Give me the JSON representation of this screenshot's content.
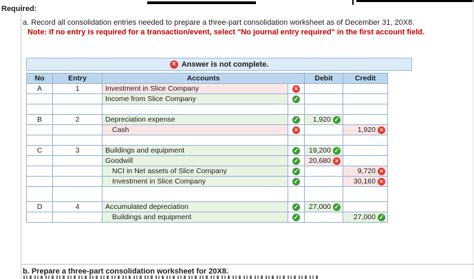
{
  "page": {
    "required_label": "Required:",
    "task_a_prefix": "a.",
    "task_a": "Record all consolidation entries needed to prepare a three-part consolidation worksheet as of December 31, 20X8.",
    "note": "Note: If no entry is required for a transaction/event, select \"No journal entry required\" in the first account field.",
    "task_b_prefix": "b.",
    "task_b": "Prepare a three-part consolidation worksheet for 20X8."
  },
  "banner": {
    "text": "Answer is not complete.",
    "icon": "x-circle-icon"
  },
  "journal_table": {
    "headers": {
      "no": "No",
      "entry": "Entry",
      "accounts": "Accounts",
      "debit": "Debit",
      "credit": "Credit"
    },
    "rows": [
      {
        "type": "entry",
        "no": "A",
        "entry": "1",
        "account": "Investment in Slice Company",
        "indent": false,
        "account_state": "incorrect",
        "debit": "",
        "debit_state": "",
        "credit": "",
        "credit_state": ""
      },
      {
        "type": "entry",
        "no": "",
        "entry": "",
        "account": "Income from Slice Company",
        "indent": false,
        "account_state": "correct",
        "debit": "",
        "debit_state": "",
        "credit": "",
        "credit_state": ""
      },
      {
        "type": "blank"
      },
      {
        "type": "entry",
        "no": "B",
        "entry": "2",
        "account": "Depreciation expense",
        "indent": false,
        "account_state": "correct",
        "debit": "1,920",
        "debit_state": "correct",
        "credit": "",
        "credit_state": ""
      },
      {
        "type": "entry",
        "no": "",
        "entry": "",
        "account": "Cash",
        "indent": true,
        "account_state": "incorrect",
        "debit": "",
        "debit_state": "",
        "credit": "1,920",
        "credit_state": "incorrect"
      },
      {
        "type": "blank"
      },
      {
        "type": "entry",
        "no": "C",
        "entry": "3",
        "account": "Buildings and equipment",
        "indent": false,
        "account_state": "correct",
        "debit": "19,200",
        "debit_state": "correct",
        "credit": "",
        "credit_state": ""
      },
      {
        "type": "entry",
        "no": "",
        "entry": "",
        "account": "Goodwill",
        "indent": false,
        "account_state": "correct",
        "debit": "20,680",
        "debit_state": "incorrect",
        "credit": "",
        "credit_state": ""
      },
      {
        "type": "entry",
        "no": "",
        "entry": "",
        "account": "NCI in Net assets of Slice Company",
        "indent": true,
        "account_state": "correct",
        "debit": "",
        "debit_state": "",
        "credit": "9,720",
        "credit_state": "incorrect"
      },
      {
        "type": "entry",
        "no": "",
        "entry": "",
        "account": "Investment in Slice Company",
        "indent": true,
        "account_state": "correct",
        "debit": "",
        "debit_state": "",
        "credit": "30,160",
        "credit_state": "incorrect"
      },
      {
        "type": "blank",
        "tall": true
      },
      {
        "type": "entry",
        "no": "D",
        "entry": "4",
        "account": "Accumulated depreciation",
        "indent": false,
        "account_state": "correct",
        "debit": "27,000",
        "debit_state": "correct",
        "credit": "",
        "credit_state": ""
      },
      {
        "type": "entry",
        "no": "",
        "entry": "",
        "account": "Buildings and equipment",
        "indent": true,
        "account_state": "correct",
        "debit": "",
        "debit_state": "",
        "credit": "27,000",
        "credit_state": "correct"
      }
    ]
  },
  "colors": {
    "note_red": "#c00000",
    "header_blue": "#bcd6ee",
    "banner_blue": "#ddebf7",
    "grid_line": "#8fafd0",
    "correct_green": "#3b9c35",
    "incorrect_red": "#e03a2f",
    "tint_green": "#e9f3e2",
    "tint_pink": "#fbe6e6"
  }
}
